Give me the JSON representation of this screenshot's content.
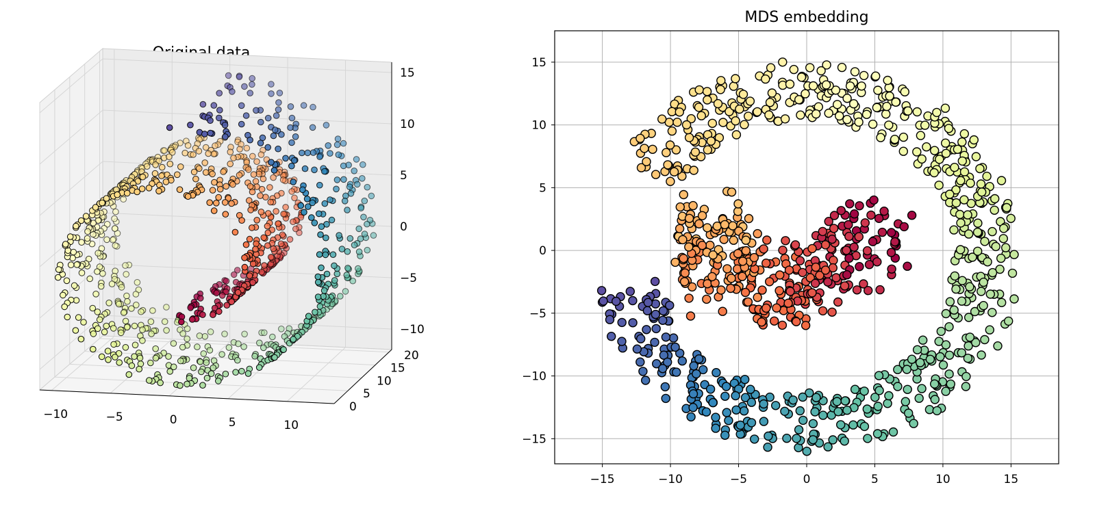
{
  "chart_data": [
    {
      "type": "scatter",
      "title": "Original data",
      "projection": "3d",
      "colormap": "Spectral",
      "marker_edge_color": "#000000",
      "x_ticks": [
        "−10",
        "−5",
        "0",
        "5",
        "10"
      ],
      "y_ticks": [
        "0",
        "5",
        "10",
        "15",
        "20"
      ],
      "z_ticks": [
        "−10",
        "−5",
        "0",
        "5",
        "10",
        "15"
      ],
      "xlim": [
        -11,
        14
      ],
      "ylim": [
        0,
        21
      ],
      "zlim": [
        -12,
        16
      ],
      "description_of_points": "Swiss-roll point cloud (~1000 points), colored along the roll from dark red (inner) through orange, yellow, green, teal to dark blue (outer)"
    },
    {
      "type": "scatter",
      "title": "MDS embedding",
      "colormap": "Spectral",
      "marker_edge_color": "#000000",
      "grid": true,
      "x_ticks": [
        "−15",
        "−10",
        "−5",
        "0",
        "5",
        "10",
        "15"
      ],
      "y_ticks": [
        "−15",
        "−10",
        "−5",
        "0",
        "5",
        "10",
        "15"
      ],
      "xlim": [
        -18.5,
        18.5
      ],
      "ylim": [
        -17,
        17.5
      ],
      "description_of_points": "2D embedding of the roll: open ring of points colored continuously from dark red (center, around x=2..8, y=-5..5) through orange, yellow (top arc y~10..15), green (right side), teal (bottom), to dark blue (left end around x=-16, y=-5..3)"
    }
  ]
}
